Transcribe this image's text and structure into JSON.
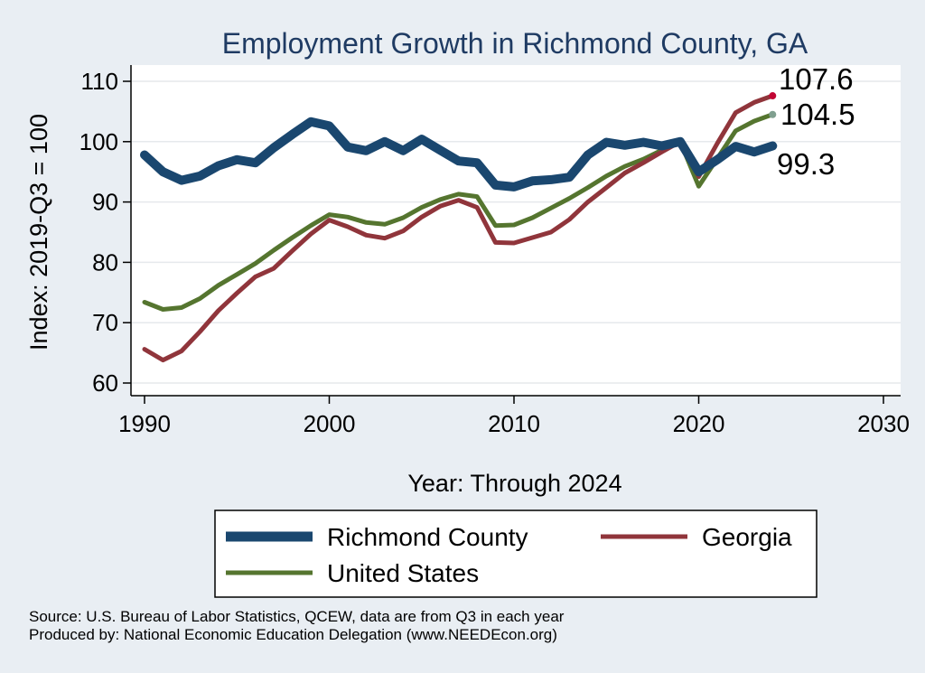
{
  "chart_data": {
    "type": "line",
    "title": "Employment Growth in Richmond County, GA",
    "xlabel": "Year: Through 2024",
    "ylabel": "Index: 2019-Q3 = 100",
    "xlim": [
      1990,
      2030
    ],
    "ylim": [
      58,
      112
    ],
    "x_ticks": [
      1990,
      2000,
      2010,
      2020,
      2030
    ],
    "y_ticks": [
      60,
      70,
      80,
      90,
      100,
      110
    ],
    "grid": "horizontal",
    "legend_position": "bottom",
    "x": [
      1990,
      1991,
      1992,
      1993,
      1994,
      1995,
      1996,
      1997,
      1998,
      1999,
      2000,
      2001,
      2002,
      2003,
      2004,
      2005,
      2006,
      2007,
      2008,
      2009,
      2010,
      2011,
      2012,
      2013,
      2014,
      2015,
      2016,
      2017,
      2018,
      2019,
      2020,
      2021,
      2022,
      2023,
      2024
    ],
    "series": [
      {
        "name": "Richmond  County",
        "color": "#1a476f",
        "values": [
          97.8,
          95.0,
          93.6,
          94.3,
          96.0,
          97.0,
          96.5,
          99.0,
          101.2,
          103.3,
          102.6,
          99.1,
          98.5,
          100.0,
          98.5,
          100.4,
          98.6,
          96.8,
          96.5,
          92.8,
          92.5,
          93.5,
          93.7,
          94.1,
          97.8,
          99.9,
          99.4,
          99.9,
          99.3,
          100.0,
          95.0,
          97.0,
          99.2,
          98.3,
          99.3
        ]
      },
      {
        "name": "Georgia",
        "color": "#90353b",
        "values": [
          65.6,
          63.8,
          65.3,
          68.5,
          72.0,
          74.9,
          77.6,
          79.0,
          81.9,
          84.7,
          87.0,
          85.9,
          84.5,
          84.0,
          85.2,
          87.5,
          89.3,
          90.3,
          89.1,
          83.3,
          83.2,
          84.1,
          85.0,
          87.1,
          90.0,
          92.4,
          94.8,
          96.5,
          98.3,
          100.0,
          94.2,
          99.7,
          104.8,
          106.5,
          107.6
        ]
      },
      {
        "name": "United States",
        "color": "#55752f",
        "values": [
          73.4,
          72.2,
          72.5,
          74.0,
          76.2,
          78.0,
          79.8,
          82.0,
          84.1,
          86.1,
          87.9,
          87.5,
          86.6,
          86.3,
          87.4,
          89.1,
          90.4,
          91.3,
          90.9,
          86.1,
          86.2,
          87.4,
          89.0,
          90.6,
          92.4,
          94.3,
          95.9,
          97.1,
          98.6,
          100.0,
          92.6,
          97.2,
          101.8,
          103.4,
          104.5
        ]
      }
    ],
    "end_labels": [
      "99.3",
      "107.6",
      "104.5"
    ],
    "end_marker_colors": [
      "#1a476f",
      "#c10534",
      "#7f9f8f"
    ]
  },
  "legend": {
    "items": [
      "Richmond  County",
      "Georgia",
      "United States"
    ]
  },
  "footer": {
    "source": "Source: U.S. Bureau of Labor Statistics, QCEW, data are from Q3 in each year",
    "produced": "Produced by: National Economic Education Delegation (www.NEEDEcon.org)"
  }
}
